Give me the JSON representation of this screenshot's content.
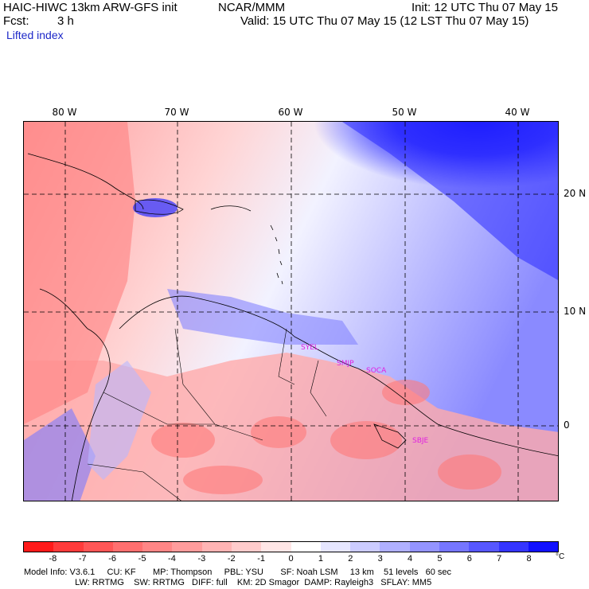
{
  "header": {
    "model": "HAIC-HIWC 13km ARW-GFS init",
    "org": "NCAR/MMM",
    "fcst_label": "Fcst:",
    "fcst_value": "3 h",
    "init": "Init: 12 UTC Thu 07 May 15",
    "valid": "Valid: 15 UTC Thu 07 May 15 (12 LST Thu 07 May 15)",
    "field": "Lifted index"
  },
  "map": {
    "lon_labels": [
      "80 W",
      "70 W",
      "60 W",
      "50 W",
      "40 W"
    ],
    "lat_labels": [
      "20 N",
      "10 N",
      "0"
    ],
    "stations": [
      "SYEL",
      "SMJP",
      "SOCA",
      "SBJE"
    ]
  },
  "colorbar": {
    "ticks": [
      "-8",
      "-7",
      "-6",
      "-5",
      "-4",
      "-3",
      "-2",
      "-1",
      "0",
      "1",
      "2",
      "3",
      "4",
      "5",
      "6",
      "7",
      "8"
    ],
    "unit": "°C",
    "colors": [
      "#ff1a1a",
      "#ff3b3b",
      "#ff5656",
      "#ff6f6f",
      "#ff8686",
      "#ff9c9c",
      "#ffb4b4",
      "#ffcccc",
      "#ffe6e6",
      "#ffffff",
      "#e6e6ff",
      "#ccccff",
      "#b0b0ff",
      "#9494ff",
      "#7676ff",
      "#5757ff",
      "#3535ff",
      "#1010ff"
    ]
  },
  "info": {
    "line1": "Model Info: V3.6.1     CU: KF       MP: Thompson     PBL: YSU       SF: Noah LSM     13 km    51 levels   60 sec",
    "line2": "                     LW: RRTMG    SW: RRTMG   DIFF: full    KM: 2D Smagor  DAMP: Rayleigh3   SFLAY: MM5"
  }
}
